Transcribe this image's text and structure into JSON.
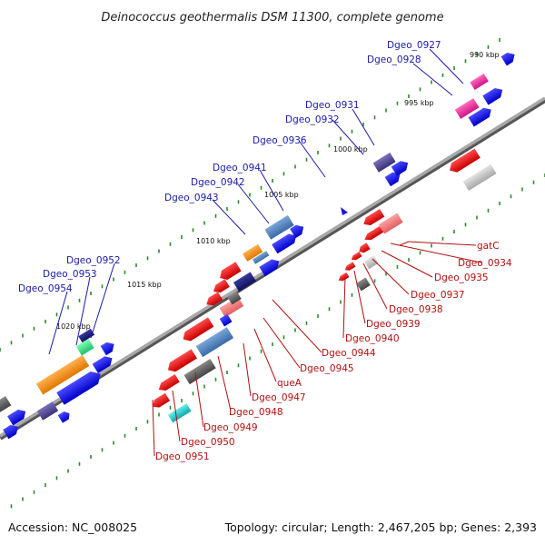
{
  "title": "Deinococcus geothermalis DSM 11300, complete genome",
  "footer": {
    "accession": "Accession: NC_008025",
    "summary": "Topology: circular; Length: 2,467,205 bp; Genes: 2,393"
  },
  "kbp_markers": [
    "990 kbp",
    "995 kbp",
    "1000 kbp",
    "1005 kbp",
    "1010 kbp",
    "1015 kbp",
    "1020 kbp"
  ],
  "upper_labels": [
    "Dgeo_0927",
    "Dgeo_0928",
    "Dgeo_0931",
    "Dgeo_0932",
    "Dgeo_0936",
    "Dgeo_0941",
    "Dgeo_0942",
    "Dgeo_0943",
    "Dgeo_0952",
    "Dgeo_0953",
    "Dgeo_0954"
  ],
  "lower_labels": [
    "gatC",
    "Dgeo_0934",
    "Dgeo_0935",
    "Dgeo_0937",
    "Dgeo_0938",
    "Dgeo_0939",
    "Dgeo_0940",
    "Dgeo_0944",
    "Dgeo_0945",
    "queA",
    "Dgeo_0947",
    "Dgeo_0948",
    "Dgeo_0949",
    "Dgeo_0950",
    "Dgeo_0951"
  ],
  "colors": {
    "forward": "#1515e6",
    "reverse": "#e41a1a",
    "backbone": "#888888",
    "tick": "#2a8a2a"
  }
}
